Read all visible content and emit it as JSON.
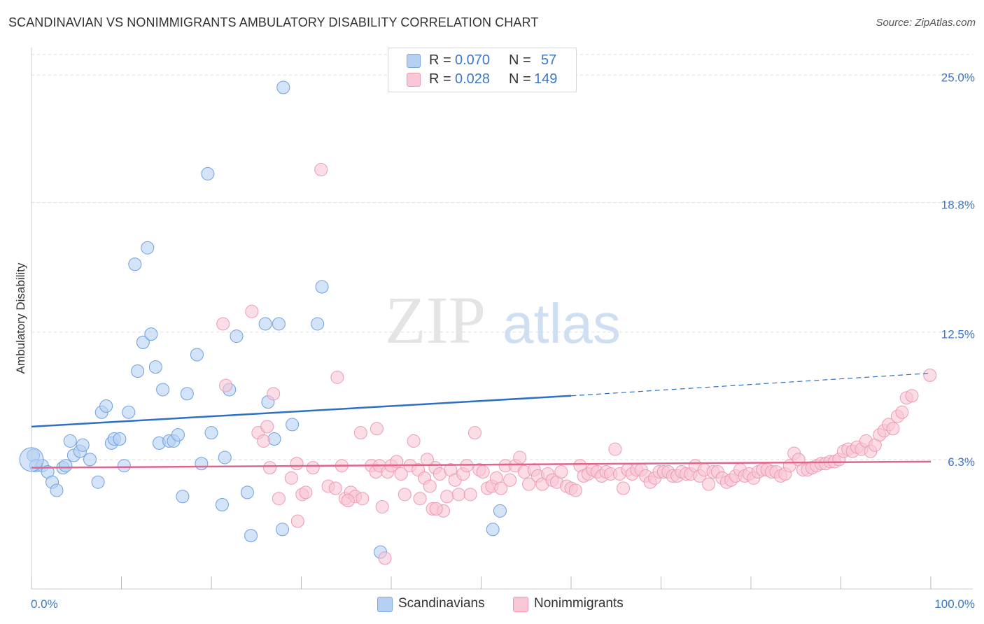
{
  "title": "SCANDINAVIAN VS NONIMMIGRANTS AMBULATORY DISABILITY CORRELATION CHART",
  "source": "Source: ZipAtlas.com",
  "watermark": {
    "zip": "ZIP",
    "atlas": "atlas"
  },
  "legend": {
    "rows": [
      {
        "r_label": "R =",
        "r_value": "0.070",
        "n_label": "N =",
        "n_value": "57",
        "color": "#b6d0f3",
        "border": "#7fa8e0"
      },
      {
        "r_label": "R =",
        "r_value": "0.028",
        "n_label": "N =",
        "n_value": "149",
        "color": "#f9c6d6",
        "border": "#ee9ab3"
      }
    ]
  },
  "bottom_legend": [
    {
      "label": "Scandinavians",
      "color": "#b6d0f3",
      "border": "#7fa8e0"
    },
    {
      "label": "Nonimmigrants",
      "color": "#f9c6d6",
      "border": "#ee9ab3"
    }
  ],
  "chart_data": {
    "type": "scatter",
    "title": "SCANDINAVIAN VS NONIMMIGRANTS AMBULATORY DISABILITY CORRELATION CHART",
    "ylabel": "Ambulatory Disability",
    "xlabel": "",
    "xlim": [
      0,
      100
    ],
    "ylim": [
      0,
      26
    ],
    "x_tick_labels": [
      "0.0%",
      "100.0%"
    ],
    "y_ticks": [
      6.3,
      12.5,
      18.8,
      25.0
    ],
    "y_tick_labels": [
      "6.3%",
      "12.5%",
      "18.8%",
      "25.0%"
    ],
    "grid": "dashed horizontal",
    "legend_position": "top-center",
    "series": [
      {
        "name": "Scandinavians",
        "color": "#6fa0e0",
        "fill": "#b6d0f3",
        "trend": {
          "x": [
            0,
            60,
            100
          ],
          "y": [
            7.9,
            9.4,
            10.5
          ],
          "solid_until": 60,
          "color": "#2f6fc4"
        },
        "points": [
          [
            0.2,
            6.5
          ],
          [
            0.5,
            6.0
          ],
          [
            1.2,
            6.0
          ],
          [
            1.8,
            5.7
          ],
          [
            2.3,
            5.2
          ],
          [
            2.8,
            4.8
          ],
          [
            3.5,
            5.9
          ],
          [
            3.8,
            6.0
          ],
          [
            4.3,
            7.2
          ],
          [
            4.7,
            6.5
          ],
          [
            5.4,
            6.7
          ],
          [
            5.7,
            7.0
          ],
          [
            6.5,
            6.3
          ],
          [
            7.4,
            5.2
          ],
          [
            7.8,
            8.6
          ],
          [
            8.3,
            8.9
          ],
          [
            8.9,
            7.1
          ],
          [
            9.2,
            7.3
          ],
          [
            9.8,
            7.3
          ],
          [
            10.3,
            6.0
          ],
          [
            10.8,
            8.6
          ],
          [
            11.5,
            15.8
          ],
          [
            11.8,
            10.6
          ],
          [
            12.4,
            12.0
          ],
          [
            12.9,
            16.6
          ],
          [
            13.3,
            12.4
          ],
          [
            13.8,
            10.8
          ],
          [
            14.2,
            7.1
          ],
          [
            14.6,
            9.7
          ],
          [
            15.3,
            7.2
          ],
          [
            15.8,
            7.2
          ],
          [
            16.3,
            7.5
          ],
          [
            16.8,
            4.5
          ],
          [
            17.3,
            9.5
          ],
          [
            18.4,
            11.4
          ],
          [
            18.9,
            6.1
          ],
          [
            19.6,
            20.2
          ],
          [
            20.0,
            7.6
          ],
          [
            21.2,
            4.1
          ],
          [
            21.5,
            6.4
          ],
          [
            22.0,
            9.7
          ],
          [
            22.8,
            12.3
          ],
          [
            24.0,
            4.7
          ],
          [
            24.4,
            2.6
          ],
          [
            26.0,
            12.9
          ],
          [
            26.3,
            9.1
          ],
          [
            27.0,
            7.3
          ],
          [
            27.5,
            12.9
          ],
          [
            27.9,
            2.9
          ],
          [
            28.0,
            24.4
          ],
          [
            29.0,
            8.0
          ],
          [
            31.8,
            12.9
          ],
          [
            32.3,
            14.7
          ],
          [
            38.8,
            1.8
          ],
          [
            51.3,
            2.9
          ],
          [
            52.1,
            3.8
          ],
          [
            0.0,
            6.3
          ]
        ]
      },
      {
        "name": "Nonimmigrants",
        "color": "#ee9ab3",
        "fill": "#f9c6d6",
        "trend": {
          "x": [
            0,
            100
          ],
          "y": [
            5.9,
            6.2
          ],
          "color": "#e0648c"
        },
        "points": [
          [
            21.3,
            12.9
          ],
          [
            21.6,
            9.9
          ],
          [
            24.5,
            13.5
          ],
          [
            25.2,
            7.6
          ],
          [
            25.8,
            7.2
          ],
          [
            26.2,
            7.9
          ],
          [
            26.5,
            5.9
          ],
          [
            26.9,
            9.5
          ],
          [
            27.5,
            4.4
          ],
          [
            28.9,
            5.4
          ],
          [
            29.5,
            6.1
          ],
          [
            29.6,
            3.3
          ],
          [
            30.1,
            4.6
          ],
          [
            30.5,
            4.7
          ],
          [
            31.3,
            5.9
          ],
          [
            32.2,
            20.4
          ],
          [
            33.0,
            5.0
          ],
          [
            33.8,
            4.9
          ],
          [
            34.5,
            6.0
          ],
          [
            34.9,
            4.4
          ],
          [
            35.5,
            4.7
          ],
          [
            36.0,
            4.5
          ],
          [
            36.6,
            7.6
          ],
          [
            37.8,
            6.0
          ],
          [
            38.3,
            5.7
          ],
          [
            38.7,
            6.0
          ],
          [
            39.0,
            4.0
          ],
          [
            39.3,
            1.5
          ],
          [
            39.6,
            5.7
          ],
          [
            40.0,
            6.0
          ],
          [
            40.6,
            6.2
          ],
          [
            41.1,
            5.6
          ],
          [
            41.5,
            4.6
          ],
          [
            42.1,
            6.0
          ],
          [
            42.5,
            7.2
          ],
          [
            43.0,
            5.8
          ],
          [
            43.7,
            5.4
          ],
          [
            44.3,
            5.0
          ],
          [
            44.6,
            3.9
          ],
          [
            44.9,
            5.9
          ],
          [
            45.4,
            5.6
          ],
          [
            45.8,
            3.8
          ],
          [
            46.2,
            4.5
          ],
          [
            46.6,
            5.8
          ],
          [
            47.1,
            5.3
          ],
          [
            47.5,
            4.6
          ],
          [
            48.0,
            5.6
          ],
          [
            48.4,
            6.0
          ],
          [
            48.8,
            4.6
          ],
          [
            49.3,
            7.6
          ],
          [
            49.8,
            5.8
          ],
          [
            50.2,
            5.7
          ],
          [
            50.7,
            4.9
          ],
          [
            51.2,
            5.0
          ],
          [
            51.7,
            5.4
          ],
          [
            52.2,
            4.9
          ],
          [
            52.7,
            6.0
          ],
          [
            53.2,
            5.3
          ],
          [
            53.8,
            6.0
          ],
          [
            54.3,
            6.4
          ],
          [
            54.8,
            5.7
          ],
          [
            55.3,
            5.1
          ],
          [
            55.9,
            5.8
          ],
          [
            56.3,
            5.5
          ],
          [
            56.8,
            5.1
          ],
          [
            57.4,
            5.6
          ],
          [
            57.9,
            5.3
          ],
          [
            58.4,
            5.2
          ],
          [
            58.9,
            5.7
          ],
          [
            59.5,
            5.0
          ],
          [
            60.0,
            4.9
          ],
          [
            60.5,
            4.8
          ],
          [
            61.0,
            6.0
          ],
          [
            61.4,
            5.5
          ],
          [
            61.9,
            5.6
          ],
          [
            62.4,
            5.8
          ],
          [
            62.9,
            5.7
          ],
          [
            63.4,
            5.5
          ],
          [
            63.9,
            5.7
          ],
          [
            64.4,
            5.6
          ],
          [
            64.9,
            6.8
          ],
          [
            65.4,
            5.6
          ],
          [
            65.8,
            4.9
          ],
          [
            66.3,
            5.8
          ],
          [
            66.8,
            5.6
          ],
          [
            67.3,
            5.8
          ],
          [
            67.8,
            5.8
          ],
          [
            68.3,
            5.5
          ],
          [
            68.8,
            5.2
          ],
          [
            69.3,
            5.4
          ],
          [
            69.8,
            5.7
          ],
          [
            70.3,
            5.7
          ],
          [
            70.8,
            5.7
          ],
          [
            71.3,
            5.5
          ],
          [
            71.8,
            5.5
          ],
          [
            72.3,
            5.7
          ],
          [
            72.8,
            5.6
          ],
          [
            73.3,
            5.6
          ],
          [
            73.8,
            6.0
          ],
          [
            74.3,
            5.5
          ],
          [
            74.8,
            5.8
          ],
          [
            75.3,
            5.1
          ],
          [
            75.8,
            5.7
          ],
          [
            76.3,
            5.7
          ],
          [
            76.8,
            5.4
          ],
          [
            77.3,
            5.2
          ],
          [
            77.8,
            5.3
          ],
          [
            78.3,
            5.5
          ],
          [
            78.8,
            5.8
          ],
          [
            79.3,
            5.5
          ],
          [
            79.8,
            5.6
          ],
          [
            80.3,
            5.4
          ],
          [
            80.8,
            5.7
          ],
          [
            81.3,
            5.8
          ],
          [
            81.8,
            5.8
          ],
          [
            82.3,
            5.7
          ],
          [
            82.8,
            5.7
          ],
          [
            83.3,
            5.5
          ],
          [
            83.8,
            5.6
          ],
          [
            84.3,
            6.0
          ],
          [
            84.8,
            6.6
          ],
          [
            85.3,
            6.3
          ],
          [
            85.8,
            5.8
          ],
          [
            86.3,
            5.8
          ],
          [
            86.8,
            5.9
          ],
          [
            87.3,
            6.0
          ],
          [
            87.8,
            6.1
          ],
          [
            88.3,
            6.1
          ],
          [
            88.8,
            6.2
          ],
          [
            89.3,
            6.2
          ],
          [
            89.8,
            6.3
          ],
          [
            90.3,
            6.7
          ],
          [
            90.8,
            6.8
          ],
          [
            91.3,
            6.7
          ],
          [
            91.8,
            6.9
          ],
          [
            92.3,
            6.8
          ],
          [
            92.8,
            7.2
          ],
          [
            93.3,
            6.7
          ],
          [
            93.8,
            7.0
          ],
          [
            94.3,
            7.5
          ],
          [
            94.8,
            7.7
          ],
          [
            95.3,
            8.0
          ],
          [
            95.8,
            7.8
          ],
          [
            96.3,
            8.4
          ],
          [
            96.8,
            8.6
          ],
          [
            97.3,
            9.3
          ],
          [
            97.9,
            9.4
          ],
          [
            99.9,
            10.4
          ],
          [
            45.0,
            3.9
          ],
          [
            43.2,
            4.4
          ],
          [
            34.0,
            10.3
          ],
          [
            36.8,
            4.4
          ],
          [
            44.0,
            6.3
          ],
          [
            38.4,
            7.8
          ],
          [
            35.2,
            4.3
          ]
        ]
      }
    ]
  }
}
